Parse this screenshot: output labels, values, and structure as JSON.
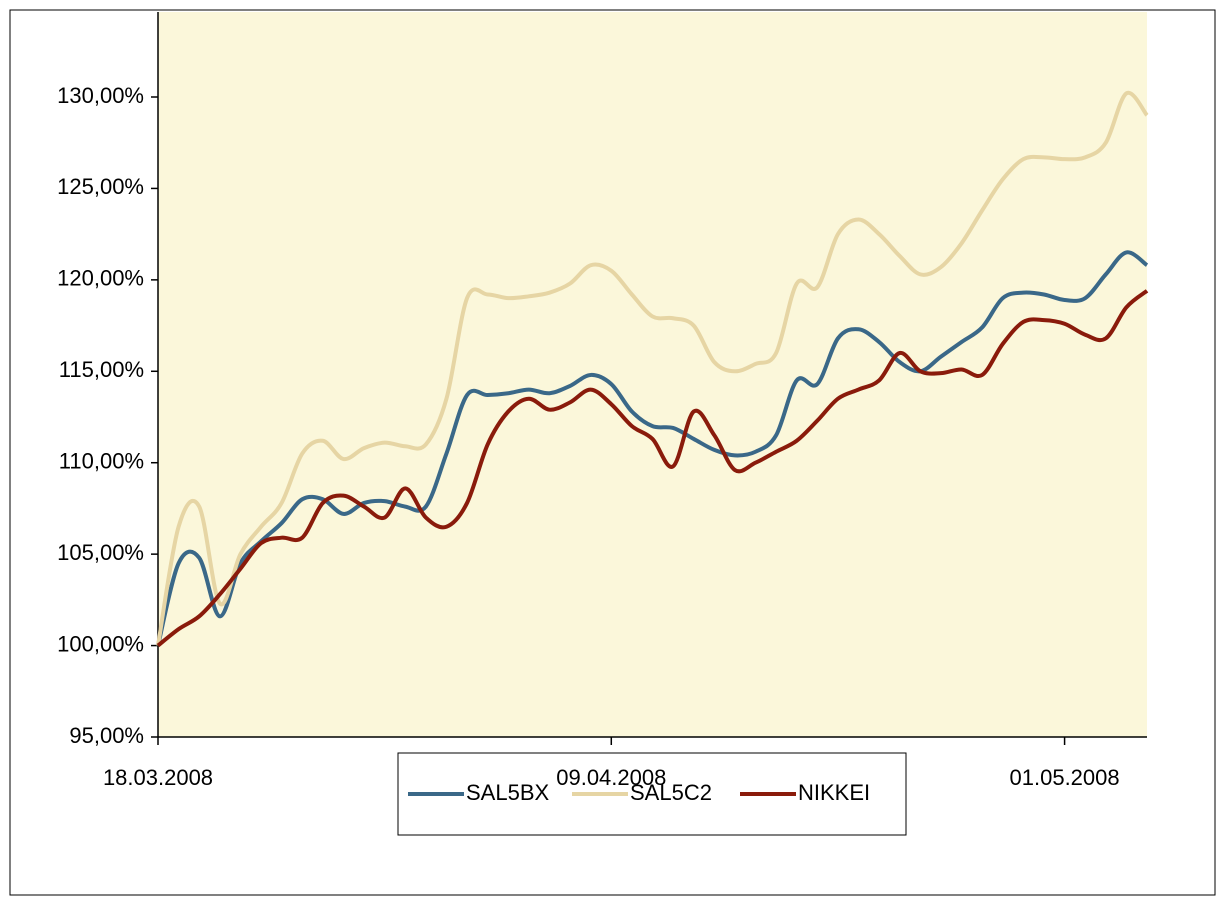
{
  "chart_data": {
    "type": "line",
    "x": [
      "2008-03-18",
      "2008-03-19",
      "2008-03-20",
      "2008-03-21",
      "2008-03-22",
      "2008-03-23",
      "2008-03-24",
      "2008-03-25",
      "2008-03-26",
      "2008-03-27",
      "2008-03-28",
      "2008-03-29",
      "2008-03-30",
      "2008-03-31",
      "2008-04-01",
      "2008-04-02",
      "2008-04-03",
      "2008-04-04",
      "2008-04-05",
      "2008-04-06",
      "2008-04-07",
      "2008-04-08",
      "2008-04-09",
      "2008-04-10",
      "2008-04-11",
      "2008-04-12",
      "2008-04-13",
      "2008-04-14",
      "2008-04-15",
      "2008-04-16",
      "2008-04-17",
      "2008-04-18",
      "2008-04-19",
      "2008-04-20",
      "2008-04-21",
      "2008-04-22",
      "2008-04-23",
      "2008-04-24",
      "2008-04-25",
      "2008-04-26",
      "2008-04-27",
      "2008-04-28",
      "2008-04-29",
      "2008-04-30",
      "2008-05-01",
      "2008-05-02",
      "2008-05-03",
      "2008-05-04",
      "2008-05-05"
    ],
    "series": [
      {
        "name": "SAL5BX",
        "color": "#3a6888",
        "values": [
          100,
          104.5,
          104.8,
          101.6,
          104.5,
          105.7,
          106.7,
          108,
          108,
          107.2,
          107.8,
          107.9,
          107.6,
          107.6,
          110.5,
          113.7,
          113.7,
          113.8,
          114,
          113.8,
          114.2,
          114.8,
          114.3,
          112.8,
          112,
          111.9,
          111.3,
          110.7,
          110.4,
          110.6,
          111.5,
          114.5,
          114.3,
          116.8,
          117.3,
          116.6,
          115.5,
          115,
          115.8,
          116.6,
          117.4,
          119,
          119.3,
          119.2,
          118.9,
          119,
          120.3,
          121.5,
          120.8
        ]
      },
      {
        "name": "SAL5C2",
        "color": "#e6d5a4",
        "values": [
          100,
          106.5,
          107.6,
          102.3,
          105,
          106.5,
          107.8,
          110.5,
          111.2,
          110.2,
          110.8,
          111.1,
          110.9,
          111,
          113.5,
          119,
          119.2,
          119,
          119.1,
          119.3,
          119.8,
          120.8,
          120.5,
          119.2,
          118,
          117.9,
          117.5,
          115.5,
          115,
          115.4,
          116,
          119.8,
          119.6,
          122.5,
          123.3,
          122.5,
          121.3,
          120.3,
          120.7,
          122,
          123.8,
          125.5,
          126.6,
          126.7,
          126.6,
          126.7,
          127.5,
          130.2,
          129
        ]
      },
      {
        "name": "NIKKEI",
        "color": "#8a1b0b",
        "values": [
          100,
          100.9,
          101.6,
          102.8,
          104.2,
          105.6,
          105.9,
          105.9,
          107.8,
          108.2,
          107.6,
          107,
          108.6,
          107,
          106.5,
          107.8,
          111,
          112.8,
          113.5,
          112.9,
          113.3,
          114,
          113.2,
          112,
          111.3,
          109.8,
          112.8,
          111.5,
          109.6,
          110,
          110.6,
          111.2,
          112.3,
          113.5,
          114,
          114.5,
          116,
          115,
          114.9,
          115.1,
          114.8,
          116.5,
          117.7,
          117.8,
          117.6,
          117,
          116.8,
          118.5,
          119.4
        ]
      }
    ],
    "xlim": [
      "2008-03-18",
      "2008-05-05"
    ],
    "xticks": [
      {
        "value": "2008-03-18",
        "label": "18.03.2008"
      },
      {
        "value": "2008-04-09",
        "label": "09.04.2008"
      },
      {
        "value": "2008-05-01",
        "label": "01.05.2008"
      }
    ],
    "ylim": [
      95,
      130
    ],
    "yticks": [
      {
        "value": 95,
        "label": "95,00%"
      },
      {
        "value": 100,
        "label": "100,00%"
      },
      {
        "value": 105,
        "label": "105,00%"
      },
      {
        "value": 110,
        "label": "110,00%"
      },
      {
        "value": 115,
        "label": "115,00%"
      },
      {
        "value": 120,
        "label": "120,00%"
      },
      {
        "value": 125,
        "label": "125,00%"
      },
      {
        "value": 130,
        "label": "130,00%"
      }
    ],
    "legend": "bottom"
  }
}
